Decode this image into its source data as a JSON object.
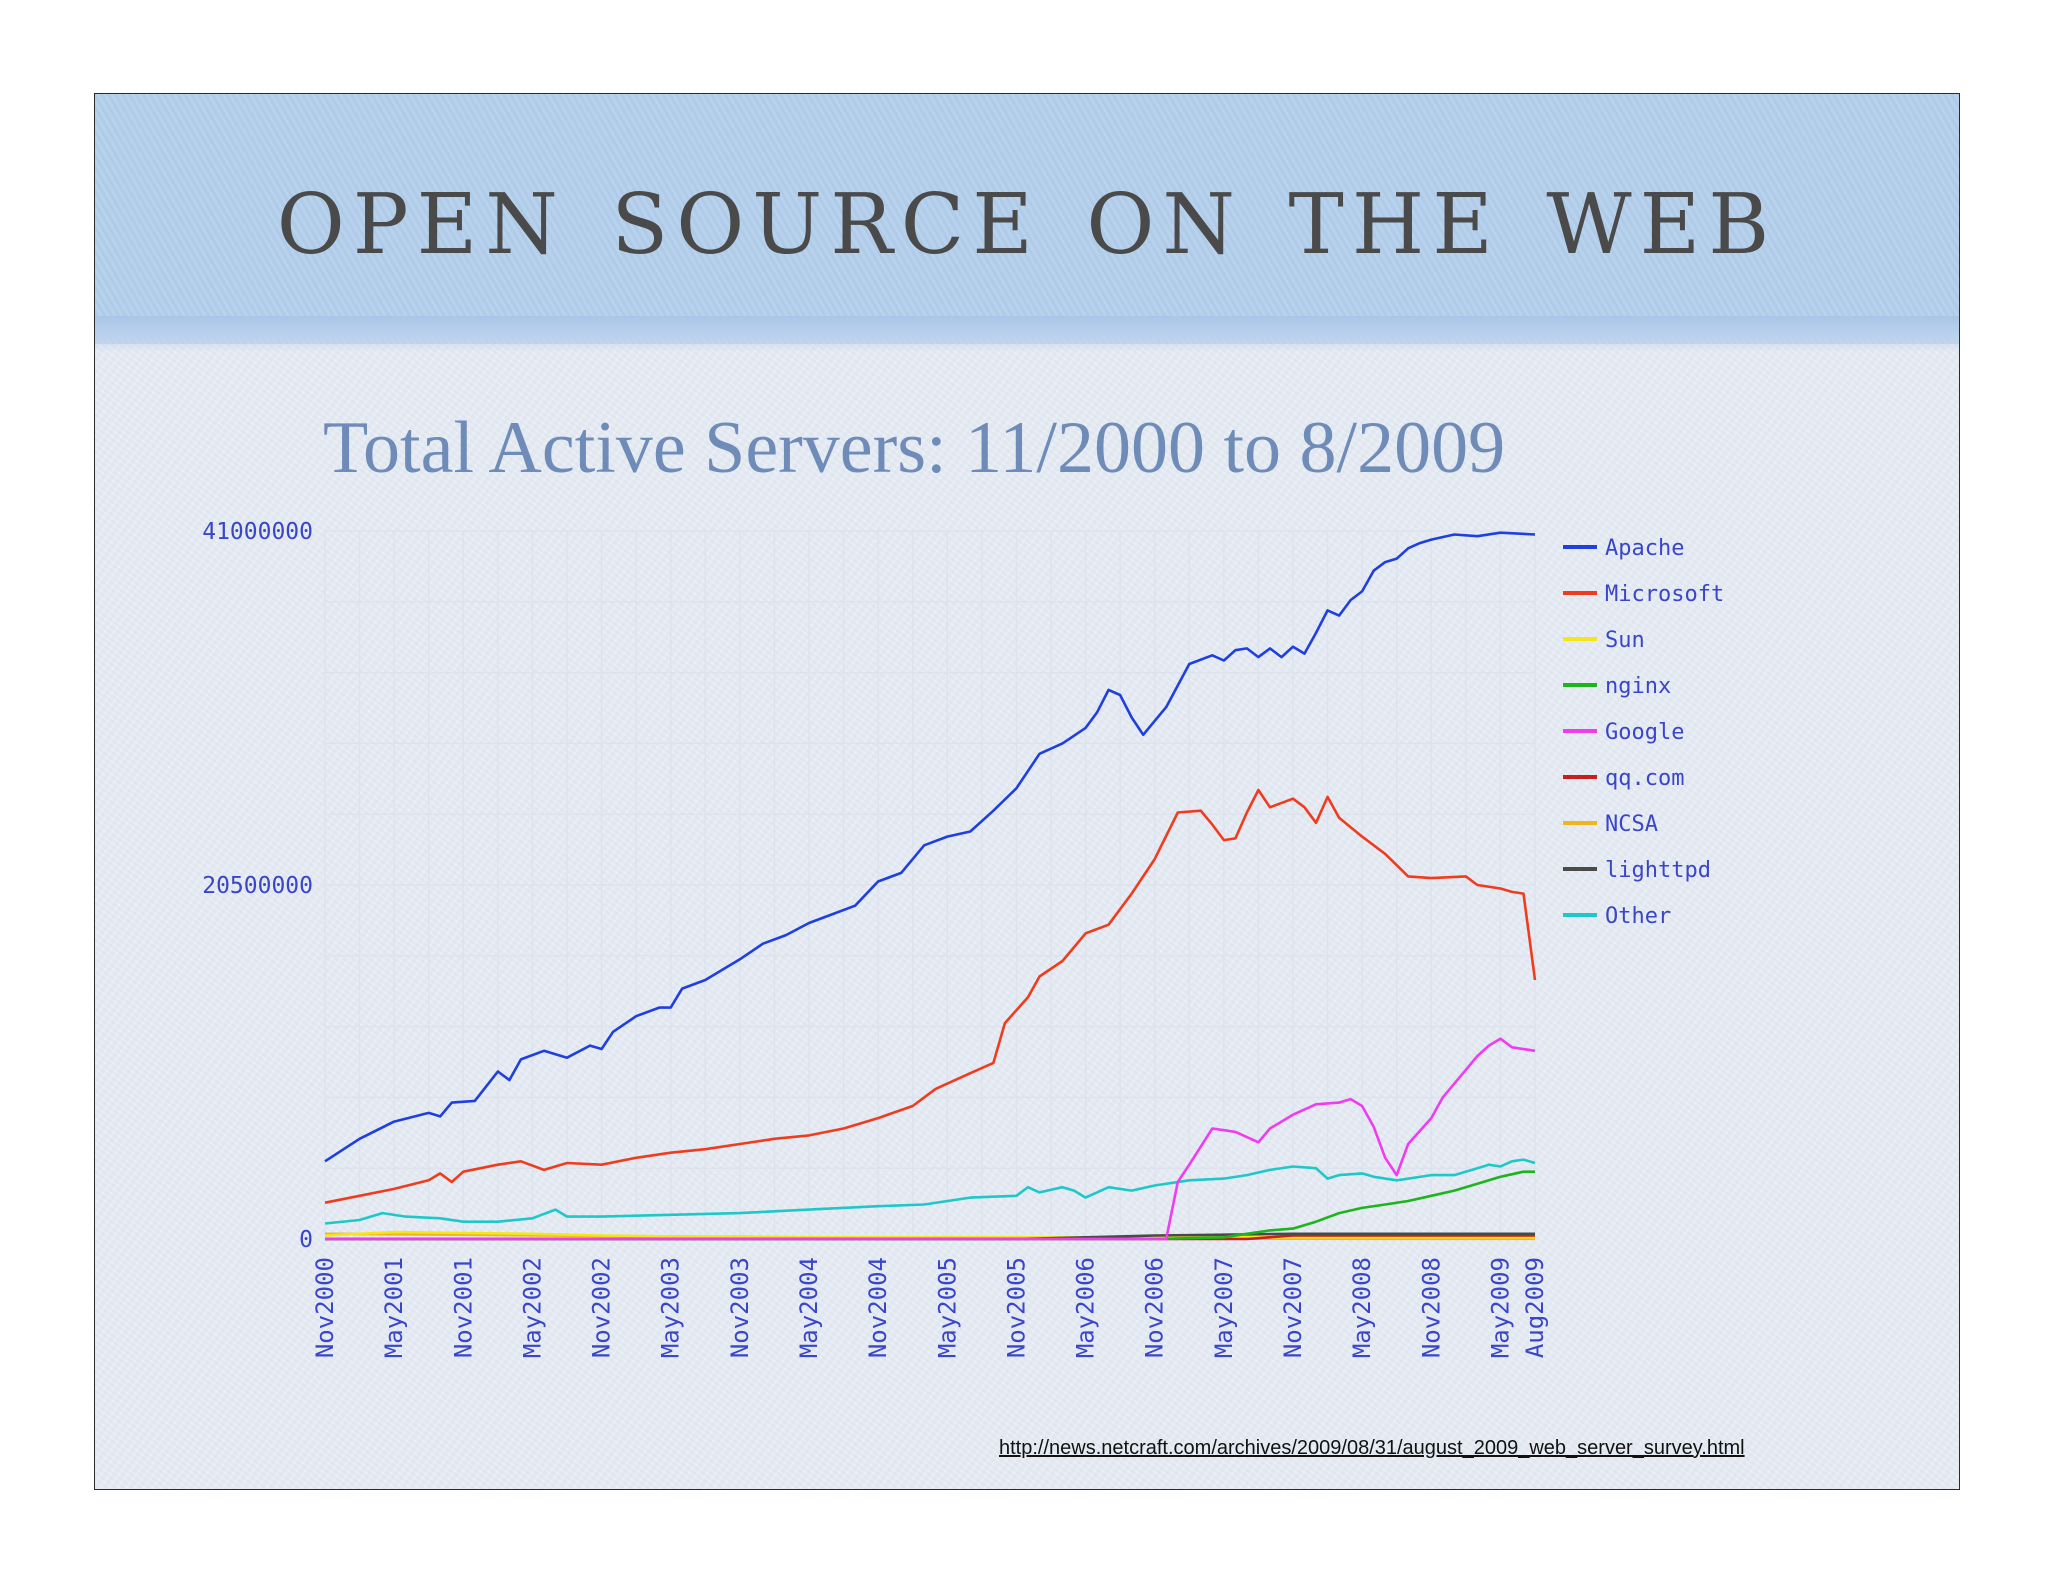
{
  "slide": {
    "title": "Open Source on the Web",
    "source_url": "http://news.netcraft.com/archives/2009/08/31/august_2009_web_server_survey.html"
  },
  "colors": {
    "header_band": "#b4cfec",
    "chart_title": "#6f8bb8",
    "axis_text": "#3a46c8",
    "grid": "#dde3ee"
  },
  "chart_data": {
    "type": "line",
    "title": "Total Active Servers: 11/2000 to 8/2009",
    "xlabel": "",
    "ylabel": "",
    "ylim": [
      0,
      41000000
    ],
    "yticks": [
      0,
      20500000,
      41000000
    ],
    "ytick_labels": [
      "0",
      "20500000",
      "41000000"
    ],
    "x_range": [
      0,
      105
    ],
    "x_ticks": [
      {
        "t": 0,
        "label": "Nov2000"
      },
      {
        "t": 6,
        "label": "May2001"
      },
      {
        "t": 12,
        "label": "Nov2001"
      },
      {
        "t": 18,
        "label": "May2002"
      },
      {
        "t": 24,
        "label": "Nov2002"
      },
      {
        "t": 30,
        "label": "May2003"
      },
      {
        "t": 36,
        "label": "Nov2003"
      },
      {
        "t": 42,
        "label": "May2004"
      },
      {
        "t": 48,
        "label": "Nov2004"
      },
      {
        "t": 54,
        "label": "May2005"
      },
      {
        "t": 60,
        "label": "Nov2005"
      },
      {
        "t": 66,
        "label": "May2006"
      },
      {
        "t": 72,
        "label": "Nov2006"
      },
      {
        "t": 78,
        "label": "May2007"
      },
      {
        "t": 84,
        "label": "Nov2007"
      },
      {
        "t": 90,
        "label": "May2008"
      },
      {
        "t": 96,
        "label": "Nov2008"
      },
      {
        "t": 102,
        "label": "May2009"
      },
      {
        "t": 105,
        "label": "Aug2009"
      }
    ],
    "grid": true,
    "legend_position": "right",
    "series": [
      {
        "name": "Apache",
        "color": "#1f3fe0",
        "points": [
          [
            0,
            4500000
          ],
          [
            3,
            5800000
          ],
          [
            6,
            6800000
          ],
          [
            9,
            7300000
          ],
          [
            10,
            7100000
          ],
          [
            11,
            7900000
          ],
          [
            13,
            8000000
          ],
          [
            15,
            9700000
          ],
          [
            16,
            9200000
          ],
          [
            17,
            10400000
          ],
          [
            19,
            10900000
          ],
          [
            21,
            10500000
          ],
          [
            23,
            11200000
          ],
          [
            24,
            11000000
          ],
          [
            25,
            12000000
          ],
          [
            27,
            12900000
          ],
          [
            29,
            13400000
          ],
          [
            30,
            13400000
          ],
          [
            31,
            14500000
          ],
          [
            33,
            15000000
          ],
          [
            36,
            16200000
          ],
          [
            38,
            17100000
          ],
          [
            40,
            17600000
          ],
          [
            42,
            18300000
          ],
          [
            44,
            18800000
          ],
          [
            46,
            19300000
          ],
          [
            48,
            20700000
          ],
          [
            50,
            21200000
          ],
          [
            52,
            22800000
          ],
          [
            54,
            23300000
          ],
          [
            56,
            23600000
          ],
          [
            58,
            24800000
          ],
          [
            60,
            26100000
          ],
          [
            62,
            28100000
          ],
          [
            64,
            28700000
          ],
          [
            66,
            29600000
          ],
          [
            67,
            30500000
          ],
          [
            68,
            31800000
          ],
          [
            69,
            31500000
          ],
          [
            70,
            30200000
          ],
          [
            71,
            29200000
          ],
          [
            73,
            30800000
          ],
          [
            75,
            33300000
          ],
          [
            77,
            33800000
          ],
          [
            78,
            33500000
          ],
          [
            79,
            34100000
          ],
          [
            80,
            34200000
          ],
          [
            81,
            33700000
          ],
          [
            82,
            34200000
          ],
          [
            83,
            33700000
          ],
          [
            84,
            34300000
          ],
          [
            85,
            33900000
          ],
          [
            86,
            35100000
          ],
          [
            87,
            36400000
          ],
          [
            88,
            36100000
          ],
          [
            89,
            37000000
          ],
          [
            90,
            37500000
          ],
          [
            91,
            38700000
          ],
          [
            92,
            39200000
          ],
          [
            93,
            39400000
          ],
          [
            94,
            40000000
          ],
          [
            95,
            40300000
          ],
          [
            96,
            40500000
          ],
          [
            98,
            40800000
          ],
          [
            100,
            40700000
          ],
          [
            102,
            40900000
          ],
          [
            105,
            40800000
          ]
        ]
      },
      {
        "name": "Microsoft",
        "color": "#f03c1e",
        "points": [
          [
            0,
            2100000
          ],
          [
            3,
            2500000
          ],
          [
            6,
            2900000
          ],
          [
            9,
            3400000
          ],
          [
            10,
            3800000
          ],
          [
            11,
            3300000
          ],
          [
            12,
            3900000
          ],
          [
            15,
            4300000
          ],
          [
            17,
            4500000
          ],
          [
            19,
            4000000
          ],
          [
            21,
            4400000
          ],
          [
            24,
            4300000
          ],
          [
            27,
            4700000
          ],
          [
            30,
            5000000
          ],
          [
            33,
            5200000
          ],
          [
            36,
            5500000
          ],
          [
            39,
            5800000
          ],
          [
            42,
            6000000
          ],
          [
            45,
            6400000
          ],
          [
            48,
            7000000
          ],
          [
            51,
            7700000
          ],
          [
            53,
            8700000
          ],
          [
            56,
            9600000
          ],
          [
            58,
            10200000
          ],
          [
            59,
            12500000
          ],
          [
            61,
            14000000
          ],
          [
            62,
            15200000
          ],
          [
            64,
            16100000
          ],
          [
            66,
            17700000
          ],
          [
            68,
            18200000
          ],
          [
            70,
            20000000
          ],
          [
            72,
            22000000
          ],
          [
            74,
            24700000
          ],
          [
            76,
            24800000
          ],
          [
            77,
            24000000
          ],
          [
            78,
            23100000
          ],
          [
            79,
            23200000
          ],
          [
            80,
            24700000
          ],
          [
            81,
            26000000
          ],
          [
            82,
            25000000
          ],
          [
            84,
            25500000
          ],
          [
            85,
            25000000
          ],
          [
            86,
            24100000
          ],
          [
            87,
            25600000
          ],
          [
            88,
            24400000
          ],
          [
            90,
            23300000
          ],
          [
            92,
            22300000
          ],
          [
            94,
            21000000
          ],
          [
            96,
            20900000
          ],
          [
            99,
            21000000
          ],
          [
            100,
            20500000
          ],
          [
            102,
            20300000
          ],
          [
            103,
            20100000
          ],
          [
            104,
            20000000
          ],
          [
            105,
            15000000
          ]
        ]
      },
      {
        "name": "Sun",
        "color": "#f5e61a",
        "points": [
          [
            0,
            200000
          ],
          [
            6,
            400000
          ],
          [
            12,
            350000
          ],
          [
            18,
            300000
          ],
          [
            24,
            200000
          ],
          [
            30,
            150000
          ],
          [
            36,
            100000
          ],
          [
            48,
            100000
          ],
          [
            60,
            100000
          ],
          [
            72,
            100000
          ],
          [
            84,
            100000
          ],
          [
            96,
            100000
          ],
          [
            105,
            100000
          ]
        ]
      },
      {
        "name": "nginx",
        "color": "#1eb41e",
        "points": [
          [
            0,
            0
          ],
          [
            72,
            0
          ],
          [
            78,
            100000
          ],
          [
            80,
            300000
          ],
          [
            82,
            500000
          ],
          [
            84,
            600000
          ],
          [
            86,
            1000000
          ],
          [
            88,
            1500000
          ],
          [
            90,
            1800000
          ],
          [
            92,
            2000000
          ],
          [
            94,
            2200000
          ],
          [
            96,
            2500000
          ],
          [
            98,
            2800000
          ],
          [
            100,
            3200000
          ],
          [
            102,
            3600000
          ],
          [
            104,
            3900000
          ],
          [
            105,
            3900000
          ]
        ]
      },
      {
        "name": "Google",
        "color": "#f03cf0",
        "points": [
          [
            0,
            0
          ],
          [
            72,
            0
          ],
          [
            73,
            0
          ],
          [
            74,
            3300000
          ],
          [
            75,
            4300000
          ],
          [
            77,
            6400000
          ],
          [
            78,
            6300000
          ],
          [
            79,
            6200000
          ],
          [
            80,
            5900000
          ],
          [
            81,
            5600000
          ],
          [
            82,
            6400000
          ],
          [
            84,
            7200000
          ],
          [
            86,
            7800000
          ],
          [
            88,
            7900000
          ],
          [
            89,
            8100000
          ],
          [
            90,
            7700000
          ],
          [
            91,
            6500000
          ],
          [
            92,
            4700000
          ],
          [
            93,
            3700000
          ],
          [
            94,
            5500000
          ],
          [
            96,
            7000000
          ],
          [
            97,
            8200000
          ],
          [
            99,
            9800000
          ],
          [
            100,
            10600000
          ],
          [
            101,
            11200000
          ],
          [
            102,
            11600000
          ],
          [
            103,
            11100000
          ],
          [
            105,
            10900000
          ]
        ]
      },
      {
        "name": "qq.com",
        "color": "#c81e1e",
        "points": [
          [
            0,
            0
          ],
          [
            80,
            0
          ],
          [
            84,
            200000
          ],
          [
            90,
            200000
          ],
          [
            96,
            200000
          ],
          [
            105,
            200000
          ]
        ]
      },
      {
        "name": "NCSA",
        "color": "#f0b41e",
        "points": [
          [
            0,
            300000
          ],
          [
            12,
            250000
          ],
          [
            24,
            180000
          ],
          [
            36,
            120000
          ],
          [
            48,
            80000
          ],
          [
            60,
            50000
          ],
          [
            72,
            30000
          ],
          [
            84,
            20000
          ],
          [
            96,
            10000
          ],
          [
            105,
            10000
          ]
        ]
      },
      {
        "name": "lighttpd",
        "color": "#4a4a4a",
        "points": [
          [
            0,
            0
          ],
          [
            60,
            0
          ],
          [
            66,
            100000
          ],
          [
            72,
            200000
          ],
          [
            78,
            250000
          ],
          [
            84,
            300000
          ],
          [
            90,
            300000
          ],
          [
            96,
            300000
          ],
          [
            105,
            300000
          ]
        ]
      },
      {
        "name": "Other",
        "color": "#1ec8c8",
        "points": [
          [
            0,
            900000
          ],
          [
            3,
            1100000
          ],
          [
            5,
            1500000
          ],
          [
            7,
            1300000
          ],
          [
            10,
            1200000
          ],
          [
            12,
            1000000
          ],
          [
            15,
            1000000
          ],
          [
            18,
            1200000
          ],
          [
            20,
            1700000
          ],
          [
            21,
            1300000
          ],
          [
            24,
            1300000
          ],
          [
            30,
            1400000
          ],
          [
            36,
            1500000
          ],
          [
            42,
            1700000
          ],
          [
            48,
            1900000
          ],
          [
            52,
            2000000
          ],
          [
            56,
            2400000
          ],
          [
            60,
            2500000
          ],
          [
            61,
            3000000
          ],
          [
            62,
            2700000
          ],
          [
            64,
            3000000
          ],
          [
            65,
            2800000
          ],
          [
            66,
            2400000
          ],
          [
            68,
            3000000
          ],
          [
            70,
            2800000
          ],
          [
            72,
            3100000
          ],
          [
            75,
            3400000
          ],
          [
            78,
            3500000
          ],
          [
            80,
            3700000
          ],
          [
            82,
            4000000
          ],
          [
            84,
            4200000
          ],
          [
            86,
            4100000
          ],
          [
            87,
            3500000
          ],
          [
            88,
            3700000
          ],
          [
            90,
            3800000
          ],
          [
            91,
            3600000
          ],
          [
            93,
            3400000
          ],
          [
            96,
            3700000
          ],
          [
            98,
            3700000
          ],
          [
            100,
            4100000
          ],
          [
            101,
            4300000
          ],
          [
            102,
            4200000
          ],
          [
            103,
            4500000
          ],
          [
            104,
            4600000
          ],
          [
            105,
            4400000
          ]
        ]
      }
    ]
  }
}
